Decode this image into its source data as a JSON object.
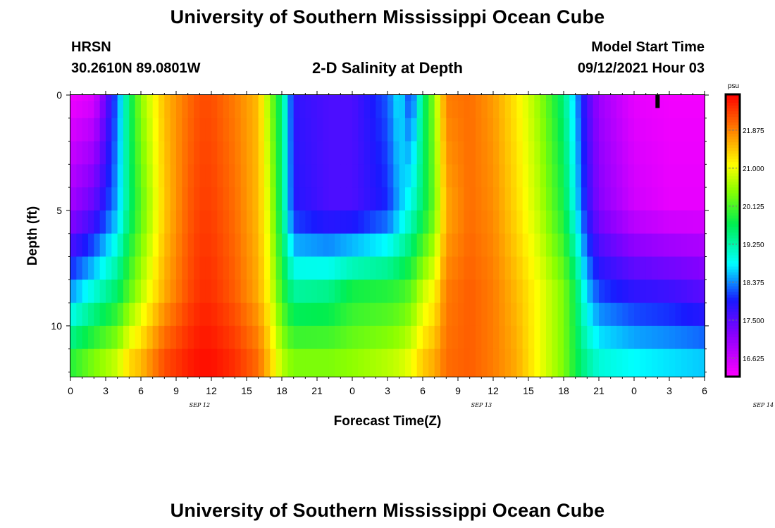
{
  "header": {
    "title": "University of Southern Mississippi Ocean Cube",
    "footer_title": "University of Southern Mississippi Ocean Cube",
    "station": "HRSN",
    "coords": "30.2610N  89.0801W",
    "plot_title": "2-D Salinity at Depth",
    "model_start_label": "Model Start Time",
    "model_start_value": "09/12/2021 Hour 03"
  },
  "chart_data": {
    "type": "heatmap",
    "title": "2-D Salinity at Depth",
    "xlabel": "Forecast Time(Z)",
    "ylabel": "Depth (ft)",
    "x_ticks": [
      "0",
      "3",
      "6",
      "9",
      "12",
      "15",
      "18",
      "21",
      "0",
      "3",
      "6",
      "9",
      "12",
      "15",
      "18",
      "21",
      "0",
      "3",
      "6"
    ],
    "x_day_labels": [
      {
        "label": "SEP 12",
        "hour_index": 11
      },
      {
        "label": "SEP 13",
        "hour_index": 35
      },
      {
        "label": "SEP 14",
        "hour_index": 59
      }
    ],
    "y_ticks": [
      "0",
      "5",
      "10"
    ],
    "y_range": [
      0,
      12.2
    ],
    "x_range_hours": [
      0,
      54
    ],
    "colorbar": {
      "unit": "psu",
      "range": [
        16.2,
        22.7
      ],
      "ticks": [
        "21.875",
        "21.000",
        "20.125",
        "19.250",
        "18.375",
        "17.500",
        "16.625"
      ]
    },
    "depth_levels_ft": [
      0,
      0.5,
      1.5,
      2.5,
      3.5,
      4.5,
      5.5,
      6.5,
      7.5,
      8.5,
      9.5,
      10.5,
      11.5
    ],
    "time_keyframes_hours": [
      0,
      2,
      4,
      5,
      6,
      8,
      10,
      11,
      12,
      14,
      16,
      17,
      18,
      19,
      22,
      24,
      27,
      28,
      29,
      30,
      31,
      32,
      34,
      36,
      38,
      40,
      42,
      43,
      44,
      45,
      48,
      51,
      54
    ],
    "salinity_psu": {
      "surface": [
        16.3,
        16.5,
        18.3,
        19.6,
        20.5,
        21.5,
        22.0,
        22.2,
        22.2,
        21.9,
        21.5,
        20.5,
        19.5,
        17.8,
        17.6,
        17.6,
        18.2,
        18.8,
        18.0,
        19.5,
        20.5,
        21.9,
        22.0,
        21.7,
        21.2,
        20.5,
        19.5,
        18.5,
        17.6,
        17.0,
        16.4,
        16.3,
        16.3
      ],
      "mid_5ft": [
        17.0,
        17.5,
        18.5,
        19.5,
        20.2,
        21.4,
        22.1,
        22.3,
        22.3,
        22.0,
        21.5,
        20.8,
        19.5,
        17.9,
        17.6,
        17.6,
        18.0,
        18.5,
        19.0,
        19.6,
        20.3,
        21.6,
        22.0,
        21.8,
        21.3,
        20.7,
        19.8,
        18.8,
        17.8,
        17.2,
        16.6,
        16.4,
        16.4
      ],
      "deep_8_5ft": [
        18.4,
        19.0,
        19.6,
        20.2,
        20.7,
        21.6,
        22.2,
        22.4,
        22.4,
        22.1,
        21.6,
        21.0,
        20.0,
        19.3,
        19.4,
        19.8,
        19.9,
        20.0,
        20.2,
        20.8,
        21.1,
        21.9,
        22.1,
        21.9,
        21.5,
        21.0,
        20.4,
        19.7,
        18.6,
        18.1,
        17.8,
        17.7,
        17.5
      ],
      "bottom_11_5ft": [
        19.9,
        20.4,
        20.8,
        21.3,
        21.5,
        22.2,
        22.5,
        22.6,
        22.6,
        22.4,
        22.0,
        21.4,
        20.7,
        20.4,
        20.4,
        20.5,
        20.7,
        20.8,
        21.0,
        21.4,
        21.6,
        22.0,
        22.1,
        21.9,
        21.6,
        21.0,
        20.4,
        19.8,
        19.3,
        19.0,
        18.8,
        18.7,
        18.6
      ]
    },
    "marker": {
      "hour": 50,
      "depth_ft": [
        0,
        0.5
      ],
      "color": "#000000"
    }
  }
}
